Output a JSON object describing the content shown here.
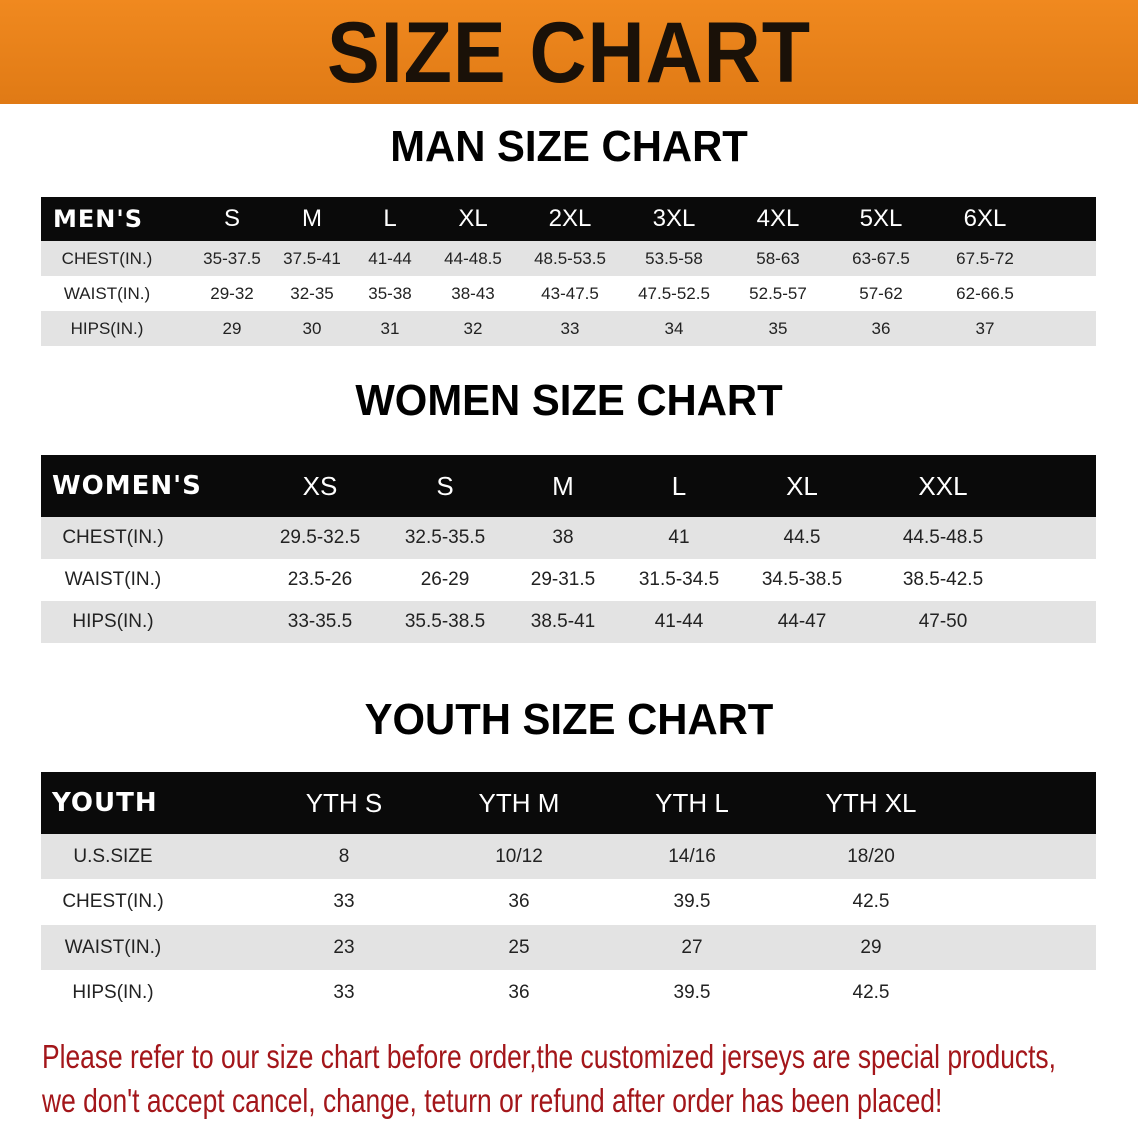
{
  "title": "SIZE CHART",
  "colors": {
    "banner": "#e8801a",
    "header_row": "#0a0a0a",
    "note": "#a3161a"
  },
  "chart_data": [
    {
      "type": "table",
      "title": "MAN SIZE CHART",
      "columns": [
        "MEN'S",
        "S",
        "M",
        "L",
        "XL",
        "2XL",
        "3XL",
        "4XL",
        "5XL",
        "6XL"
      ],
      "rows": [
        [
          "CHEST(IN.)",
          "35-37.5",
          "37.5-41",
          "41-44",
          "44-48.5",
          "48.5-53.5",
          "53.5-58",
          "58-63",
          "63-67.5",
          "67.5-72"
        ],
        [
          "WAIST(IN.)",
          "29-32",
          "32-35",
          "35-38",
          "38-43",
          "43-47.5",
          "47.5-52.5",
          "52.5-57",
          "57-62",
          "62-66.5"
        ],
        [
          "HIPS(IN.)",
          "29",
          "30",
          "31",
          "32",
          "33",
          "34",
          "35",
          "36",
          "37"
        ]
      ]
    },
    {
      "type": "table",
      "title": "WOMEN SIZE CHART",
      "columns": [
        "WOMEN'S",
        "XS",
        "S",
        "M",
        "L",
        "XL",
        "XXL"
      ],
      "rows": [
        [
          "CHEST(IN.)",
          "29.5-32.5",
          "32.5-35.5",
          "38",
          "41",
          "44.5",
          "44.5-48.5"
        ],
        [
          "WAIST(IN.)",
          "23.5-26",
          "26-29",
          "29-31.5",
          "31.5-34.5",
          "34.5-38.5",
          "38.5-42.5"
        ],
        [
          "HIPS(IN.)",
          "33-35.5",
          "35.5-38.5",
          "38.5-41",
          "41-44",
          "44-47",
          "47-50"
        ]
      ]
    },
    {
      "type": "table",
      "title": "YOUTH SIZE CHART",
      "columns": [
        "YOUTH",
        "YTH S",
        "YTH M",
        "YTH L",
        "YTH XL"
      ],
      "rows": [
        [
          "U.S.SIZE",
          "8",
          "10/12",
          "14/16",
          "18/20"
        ],
        [
          "CHEST(IN.)",
          "33",
          "36",
          "39.5",
          "42.5"
        ],
        [
          "WAIST(IN.)",
          "23",
          "25",
          "27",
          "29"
        ],
        [
          "HIPS(IN.)",
          "33",
          "36",
          "39.5",
          "42.5"
        ]
      ]
    }
  ],
  "note": {
    "line1": "Please refer to our size chart before order,the customized jerseys are special products,",
    "line2": "we don't accept cancel, change, teturn or refund after order has been placed!"
  }
}
